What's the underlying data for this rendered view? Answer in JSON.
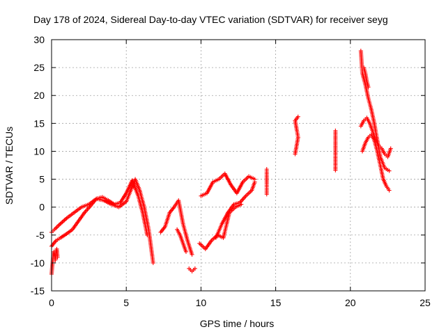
{
  "chart_data": {
    "type": "scatter",
    "title": "Day 178 of 2024, Sidereal Day-to-day VTEC variation (SDTVAR) for receiver seyg",
    "xlabel": "GPS time / hours",
    "ylabel": "SDTVAR / TECUs",
    "xlim": [
      0,
      25
    ],
    "ylim": [
      -15,
      30
    ],
    "xticks": [
      0,
      5,
      10,
      15,
      20,
      25
    ],
    "yticks": [
      -15,
      -10,
      -5,
      0,
      5,
      10,
      15,
      20,
      25,
      30
    ],
    "grid": true,
    "marker": "+",
    "color": "#ff0000",
    "series": [
      {
        "name": "track-a",
        "x": [
          0.0,
          0.2,
          0.5,
          1.0,
          1.5,
          2.0,
          2.5,
          3.0,
          3.5,
          4.0,
          4.5,
          5.0,
          5.3,
          5.6,
          5.9,
          6.2,
          6.5,
          6.8
        ],
        "y": [
          -4.5,
          -4.0,
          -3.2,
          -2.0,
          -1.0,
          0.0,
          0.5,
          1.5,
          1.2,
          0.5,
          0.0,
          1.0,
          3.0,
          5.0,
          3.0,
          0.0,
          -4.0,
          -10.0
        ]
      },
      {
        "name": "track-b",
        "x": [
          0.0,
          0.3,
          0.6,
          1.0,
          1.4,
          1.8,
          2.2,
          2.6,
          3.0,
          3.4,
          3.8,
          4.2,
          4.6,
          5.0,
          5.4,
          5.8,
          6.1,
          6.4
        ],
        "y": [
          -7.0,
          -6.0,
          -5.5,
          -4.8,
          -4.0,
          -2.5,
          -1.0,
          0.2,
          1.5,
          1.8,
          1.2,
          0.5,
          0.8,
          2.5,
          4.8,
          2.0,
          -1.0,
          -5.0
        ]
      },
      {
        "name": "track-c",
        "x": [
          0.0,
          0.05,
          0.1,
          0.15,
          0.2,
          0.25,
          0.3,
          0.35,
          0.4
        ],
        "y": [
          -12.0,
          -10.5,
          -9.0,
          -8.0,
          -8.5,
          -9.5,
          -8.0,
          -7.5,
          -9.0
        ]
      },
      {
        "name": "track-d",
        "x": [
          7.3,
          7.6,
          7.9,
          8.2,
          8.5,
          8.8,
          9.1,
          9.4
        ],
        "y": [
          -4.5,
          -3.5,
          -1.0,
          0.0,
          1.2,
          -3.0,
          -6.0,
          -8.5
        ]
      },
      {
        "name": "track-e",
        "x": [
          8.4,
          8.6,
          8.8,
          9.0
        ],
        "y": [
          -4.0,
          -5.0,
          -6.5,
          -8.0
        ]
      },
      {
        "name": "track-f",
        "x": [
          9.2,
          9.4,
          9.6
        ],
        "y": [
          -11.0,
          -11.5,
          -11.0
        ]
      },
      {
        "name": "track-g",
        "x": [
          9.9,
          10.3,
          10.7,
          11.1,
          11.5,
          11.9,
          12.3,
          12.7
        ],
        "y": [
          -6.5,
          -7.5,
          -6.0,
          -5.0,
          -5.5,
          -1.0,
          0.0,
          0.5
        ]
      },
      {
        "name": "track-h",
        "x": [
          10.0,
          10.4,
          10.8,
          11.2,
          11.6,
          12.0,
          12.4,
          12.8,
          13.2,
          13.6
        ],
        "y": [
          2.0,
          2.5,
          4.5,
          5.0,
          6.0,
          4.0,
          2.5,
          4.5,
          5.5,
          5.0
        ]
      },
      {
        "name": "track-i",
        "x": [
          11.0,
          11.4,
          11.8,
          12.2,
          12.6,
          13.0,
          13.4,
          13.6
        ],
        "y": [
          -5.5,
          -3.0,
          -1.0,
          0.5,
          0.8,
          2.0,
          3.0,
          4.5
        ]
      },
      {
        "name": "track-j",
        "x": [
          14.4,
          14.4,
          14.4,
          14.4
        ],
        "y": [
          6.8,
          5.2,
          4.2,
          2.3
        ]
      },
      {
        "name": "track-k",
        "x": [
          16.3,
          16.4,
          16.5,
          16.4,
          16.3,
          16.5
        ],
        "y": [
          9.5,
          11.0,
          12.5,
          14.0,
          15.5,
          16.2
        ]
      },
      {
        "name": "track-l",
        "x": [
          19.0,
          19.0
        ],
        "y": [
          13.7,
          6.6
        ]
      },
      {
        "name": "track-m",
        "x": [
          20.7,
          20.8,
          21.0,
          21.2,
          21.4,
          21.6,
          21.8,
          22.0,
          22.3,
          22.6
        ],
        "y": [
          28.0,
          24.0,
          22.0,
          19.5,
          17.5,
          15.0,
          12.0,
          9.0,
          7.0,
          6.5
        ]
      },
      {
        "name": "track-n",
        "x": [
          20.8,
          21.0,
          21.2,
          21.4,
          21.6,
          21.8,
          22.0,
          22.2,
          22.4,
          22.6
        ],
        "y": [
          10.0,
          11.5,
          12.5,
          13.0,
          12.0,
          10.0,
          7.5,
          5.0,
          3.8,
          3.0
        ]
      },
      {
        "name": "track-o",
        "x": [
          20.7,
          20.9,
          21.1,
          21.3,
          21.5,
          21.7,
          21.9,
          22.1,
          22.3,
          22.5,
          22.7
        ],
        "y": [
          14.5,
          15.5,
          16.0,
          15.0,
          13.5,
          12.0,
          11.0,
          10.5,
          9.5,
          9.0,
          10.5
        ]
      },
      {
        "name": "track-p",
        "x": [
          20.9,
          21.0,
          21.1,
          21.2
        ],
        "y": [
          25.0,
          24.0,
          22.5,
          21.5
        ]
      }
    ]
  }
}
